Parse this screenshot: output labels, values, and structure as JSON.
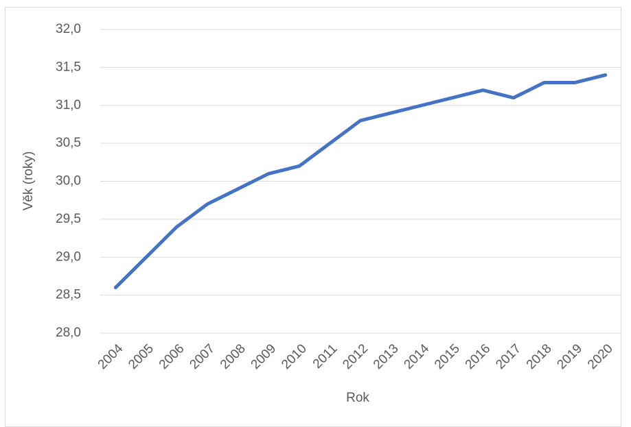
{
  "chart_data": {
    "type": "line",
    "x_label": "Rok",
    "y_label": "Věk (roky)",
    "categories": [
      "2004",
      "2005",
      "2006",
      "2007",
      "2008",
      "2009",
      "2010",
      "2011",
      "2012",
      "2013",
      "2014",
      "2015",
      "2016",
      "2017",
      "2018",
      "2019",
      "2020"
    ],
    "values": [
      28.6,
      29.0,
      29.4,
      29.7,
      29.9,
      30.1,
      30.2,
      30.5,
      30.8,
      30.9,
      31.0,
      31.1,
      31.2,
      31.1,
      31.3,
      31.3,
      31.4
    ],
    "color": "#4472c4",
    "ylim": [
      28,
      32
    ],
    "yticks": [
      {
        "value": 28,
        "label": "28,0"
      },
      {
        "value": 28.5,
        "label": "28,5"
      },
      {
        "value": 29,
        "label": "29,0"
      },
      {
        "value": 29.5,
        "label": "29,5"
      },
      {
        "value": 30,
        "label": "30,0"
      },
      {
        "value": 30.5,
        "label": "30,5"
      },
      {
        "value": 31,
        "label": "31,0"
      },
      {
        "value": 31.5,
        "label": "31,5"
      },
      {
        "value": 32,
        "label": "32,0"
      }
    ],
    "grid": true
  }
}
